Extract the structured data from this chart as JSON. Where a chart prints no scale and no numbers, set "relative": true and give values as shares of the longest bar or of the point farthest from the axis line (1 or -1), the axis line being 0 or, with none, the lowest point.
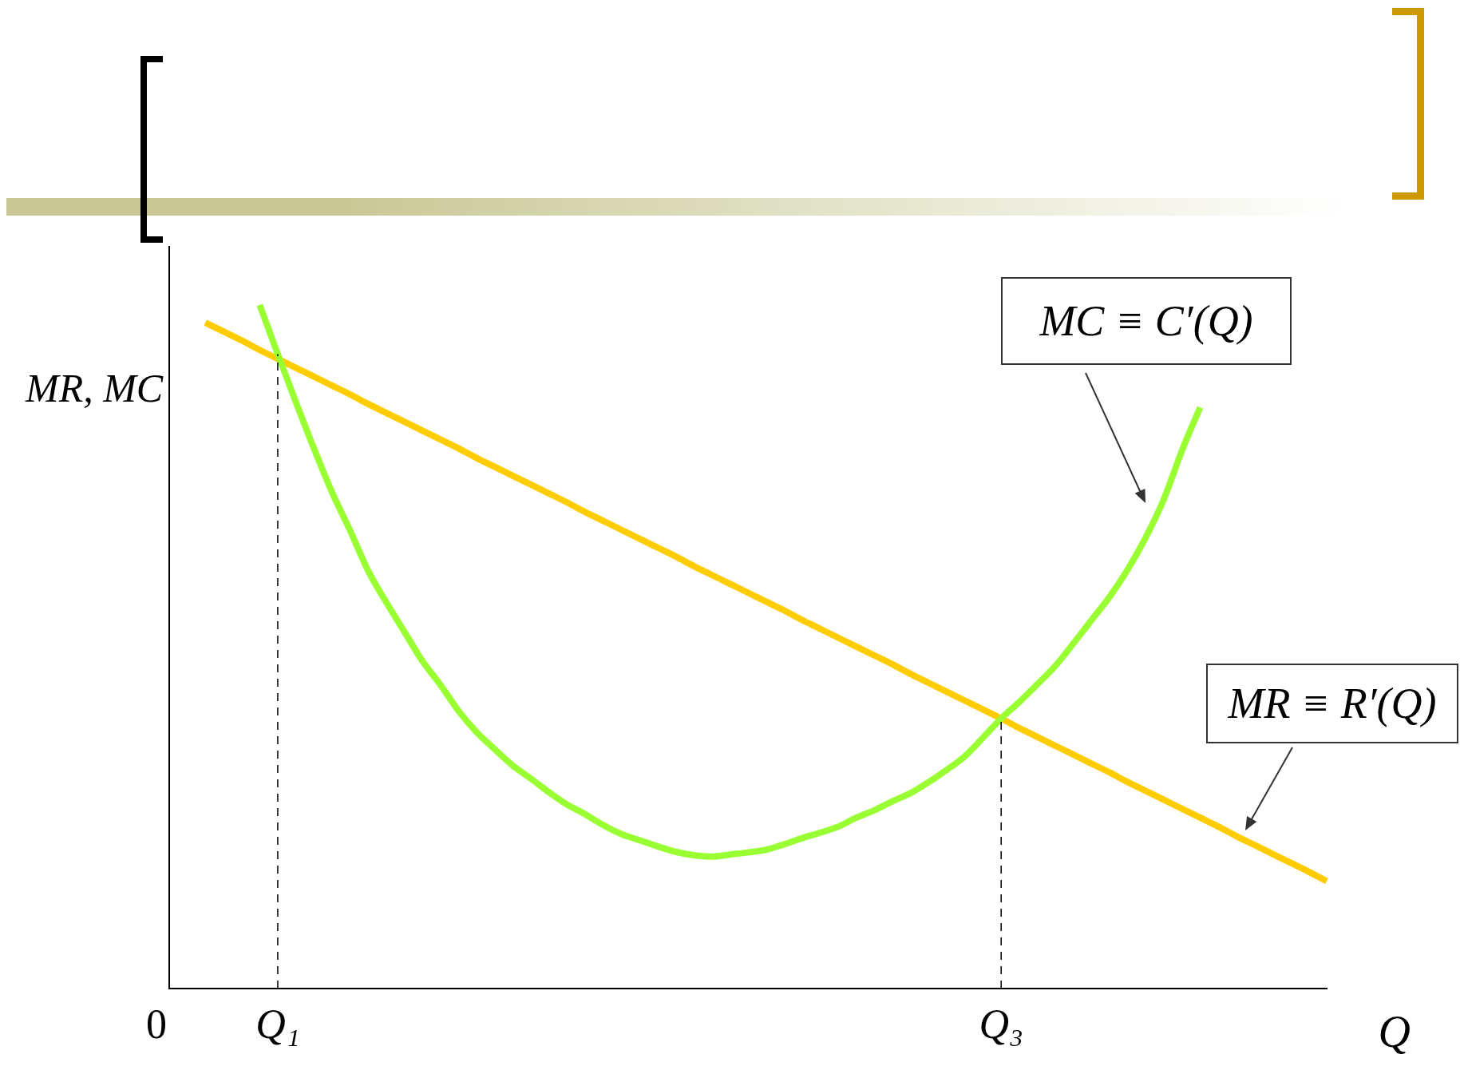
{
  "chart_data": {
    "type": "line",
    "relative": true,
    "xlabel": "Q",
    "ylabel": "MR, MC",
    "categories": [
      "0",
      null,
      null,
      null,
      null,
      null,
      "Q₁",
      null,
      null,
      null,
      null,
      null,
      null,
      null,
      null,
      null,
      null,
      null,
      null,
      null,
      null,
      null,
      null,
      null,
      null,
      null,
      null,
      null,
      null,
      null,
      null,
      null,
      null,
      null,
      null,
      null,
      null,
      null,
      null,
      null,
      null,
      null,
      null,
      null,
      null,
      null,
      "Q₃",
      null,
      null,
      null,
      null,
      null,
      null,
      null,
      null,
      null,
      null,
      null,
      null,
      null,
      null,
      null,
      null,
      null,
      null
    ],
    "series": [
      {
        "color": "#99ff33",
        "values": [
          null,
          null,
          null,
          null,
          null,
          1.0,
          0.928,
          0.858,
          0.79,
          0.726,
          0.67,
          0.611,
          0.565,
          0.522,
          0.479,
          0.444,
          0.406,
          0.375,
          0.35,
          0.326,
          0.307,
          0.287,
          0.269,
          0.255,
          0.239,
          0.226,
          0.217,
          0.208,
          0.2,
          0.195,
          0.193,
          0.196,
          0.199,
          0.203,
          0.211,
          0.22,
          0.228,
          0.237,
          0.25,
          0.261,
          0.274,
          0.286,
          0.302,
          0.32,
          0.34,
          0.367,
          0.395,
          0.419,
          0.445,
          0.472,
          0.505,
          0.539,
          0.573,
          0.613,
          0.66,
          0.716,
          0.787,
          0.85,
          null,
          null,
          null,
          null,
          null,
          null,
          null
        ]
      },
      {
        "color": "#ffcc00",
        "values": [
          null,
          null,
          0.974,
          0.961,
          0.948,
          0.934,
          0.921,
          0.908,
          0.895,
          0.882,
          0.869,
          0.855,
          0.842,
          0.829,
          0.816,
          0.803,
          0.79,
          0.776,
          0.763,
          0.75,
          0.737,
          0.724,
          0.711,
          0.697,
          0.684,
          0.671,
          0.658,
          0.645,
          0.632,
          0.618,
          0.605,
          0.592,
          0.579,
          0.566,
          0.553,
          0.539,
          0.526,
          0.513,
          0.5,
          0.487,
          0.474,
          0.46,
          0.447,
          0.434,
          0.421,
          0.408,
          0.395,
          0.381,
          0.368,
          0.355,
          0.342,
          0.329,
          0.316,
          0.302,
          0.289,
          0.276,
          0.263,
          0.25,
          0.237,
          0.223,
          0.21,
          0.197,
          0.184,
          0.171,
          0.157
        ]
      }
    ],
    "ref_lines": [
      {
        "axis": "x",
        "value": "Q₁",
        "line_style": "dashed",
        "color": "#000000"
      },
      {
        "axis": "x",
        "value": "Q₃",
        "line_style": "dashed",
        "color": "#000000"
      }
    ],
    "annotations": [
      "MC ≡ C′(Q)",
      "MR ≡ R′(Q)"
    ],
    "grid": false,
    "legend": false,
    "marker": "none",
    "line_style": "solid",
    "tick_labels": "x"
  }
}
